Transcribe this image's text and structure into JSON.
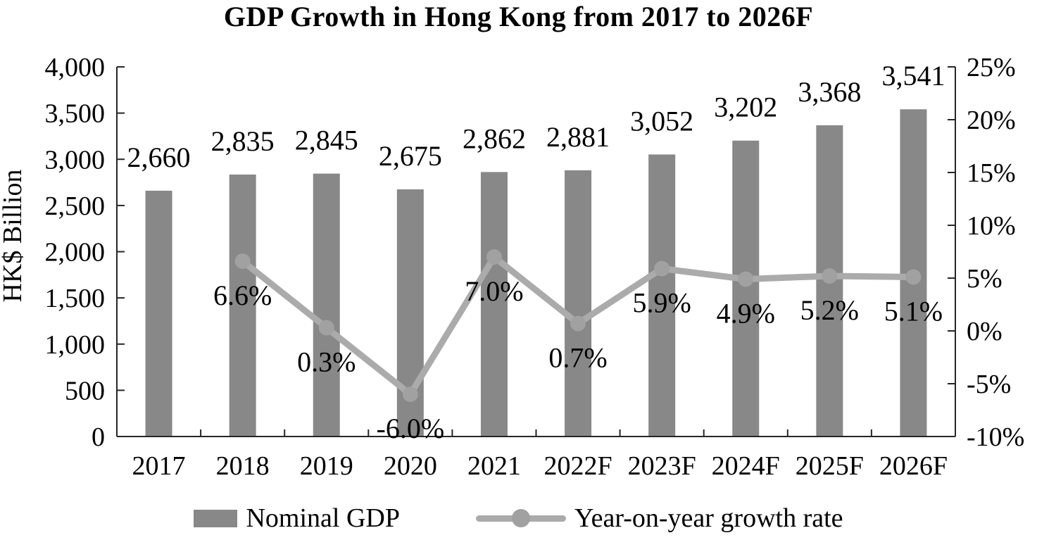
{
  "title": "GDP Growth in Hong Kong from 2017 to 2026F",
  "chart_data": {
    "type": "bar",
    "subtype": "combo-bar-line-dual-axis",
    "title": "GDP Growth in Hong Kong from 2017 to 2026F",
    "categories": [
      "2017",
      "2018",
      "2019",
      "2020",
      "2021",
      "2022F",
      "2023F",
      "2024F",
      "2025F",
      "2026F"
    ],
    "series": [
      {
        "name": "Nominal GDP",
        "type": "bar",
        "axis": "left",
        "values": [
          2660,
          2835,
          2845,
          2675,
          2862,
          2881,
          3052,
          3202,
          3368,
          3541
        ],
        "labels": [
          "2,660",
          "2,835",
          "2,845",
          "2,675",
          "2,862",
          "2,881",
          "3,052",
          "3,202",
          "3,368",
          "3,541"
        ],
        "color": "#888888"
      },
      {
        "name": "Year-on-year growth rate",
        "type": "line",
        "axis": "right",
        "values": [
          null,
          6.6,
          0.3,
          -6.0,
          7.0,
          0.7,
          5.9,
          4.9,
          5.2,
          5.1
        ],
        "labels": [
          "",
          "6.6%",
          "0.3%",
          "-6.0%",
          "7.0%",
          "0.7%",
          "5.9%",
          "4.9%",
          "5.2%",
          "5.1%"
        ],
        "color": "#ABABAB",
        "marker_color": "#A1A1A1"
      }
    ],
    "left_axis": {
      "label": "HK$ Billion",
      "min": 0,
      "max": 4000,
      "step": 500,
      "tick_labels": [
        "0",
        "500",
        "1,000",
        "1,500",
        "2,000",
        "2,500",
        "3,000",
        "3,500",
        "4,000"
      ]
    },
    "right_axis": {
      "min": -10,
      "max": 25,
      "step": 5,
      "tick_labels": [
        "-10%",
        "-5%",
        "0%",
        "5%",
        "10%",
        "15%",
        "20%",
        "25%"
      ]
    },
    "grid": false,
    "legend_position": "bottom",
    "axis_color": "#262626",
    "text_color": "#000000",
    "background": "#ffffff"
  }
}
